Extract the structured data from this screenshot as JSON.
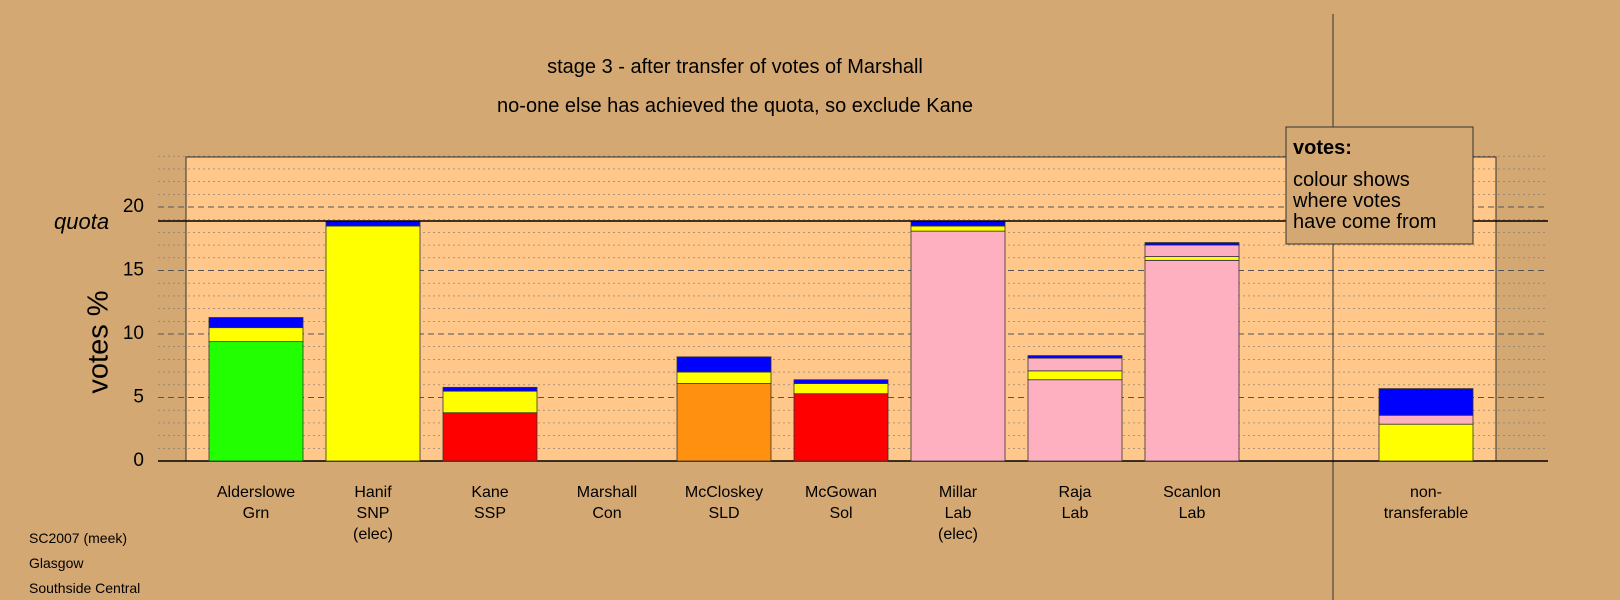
{
  "chart_data": {
    "type": "bar",
    "stacked": true,
    "title": "stage 3 - after transfer of votes of Marshall",
    "subtitle": "no-one else has achieved the quota, so exclude Kane",
    "ylabel": "votes %",
    "ylim": [
      0,
      24
    ],
    "yticks": [
      0,
      5,
      10,
      15,
      20
    ],
    "quota": {
      "label": "quota",
      "value": 18.9
    },
    "categories": [
      [
        "Alderslowe",
        "Grn"
      ],
      [
        "Hanif",
        "SNP",
        "(elec)"
      ],
      [
        "Kane",
        "SSP"
      ],
      [
        "Marshall",
        "Con"
      ],
      [
        "McCloskey",
        "SLD"
      ],
      [
        "McGowan",
        "Sol"
      ],
      [
        "Millar",
        "Lab",
        "(elec)"
      ],
      [
        "Raja",
        "Lab"
      ],
      [
        "Scanlon",
        "Lab"
      ],
      [
        "non-",
        "transferable"
      ]
    ],
    "segments": [
      [
        {
          "color": "#22ff00",
          "value": 9.4
        },
        {
          "color": "#ffff00",
          "value": 1.1
        },
        {
          "color": "#0000ff",
          "value": 0.8
        }
      ],
      [
        {
          "color": "#ffff00",
          "value": 18.5
        },
        {
          "color": "#0000ff",
          "value": 0.4
        }
      ],
      [
        {
          "color": "#ff0000",
          "value": 3.8
        },
        {
          "color": "#ffff00",
          "value": 1.7
        },
        {
          "color": "#0000ff",
          "value": 0.3
        }
      ],
      [],
      [
        {
          "color": "#ff9010",
          "value": 6.1
        },
        {
          "color": "#ffff00",
          "value": 0.9
        },
        {
          "color": "#0000ff",
          "value": 1.2
        }
      ],
      [
        {
          "color": "#ff0000",
          "value": 5.3
        },
        {
          "color": "#ffff00",
          "value": 0.8
        },
        {
          "color": "#0000ff",
          "value": 0.3
        }
      ],
      [
        {
          "color": "#ffb0c0",
          "value": 18.1
        },
        {
          "color": "#ffff00",
          "value": 0.4
        },
        {
          "color": "#0000ff",
          "value": 0.4
        }
      ],
      [
        {
          "color": "#ffb0c0",
          "value": 6.4
        },
        {
          "color": "#ffff00",
          "value": 0.7
        },
        {
          "color": "#ffb0c0",
          "value": 1.0
        },
        {
          "color": "#0000ff",
          "value": 0.2
        }
      ],
      [
        {
          "color": "#ffb0c0",
          "value": 15.8
        },
        {
          "color": "#ffff00",
          "value": 0.3
        },
        {
          "color": "#ffb0c0",
          "value": 0.9
        },
        {
          "color": "#0000ff",
          "value": 0.2
        }
      ],
      [
        {
          "color": "#ffff00",
          "value": 2.9
        },
        {
          "color": "#ffb0c0",
          "value": 0.7
        },
        {
          "color": "#0000ff",
          "value": 2.1
        }
      ]
    ],
    "legend": {
      "title": "votes:",
      "lines": [
        "colour shows",
        "where votes",
        "have come from"
      ]
    },
    "colors": {
      "background": "#d4a872",
      "plot_area": "#ffc88a"
    }
  },
  "footer": [
    "SC2007 (meek)",
    "Glasgow",
    "Southside Central"
  ]
}
